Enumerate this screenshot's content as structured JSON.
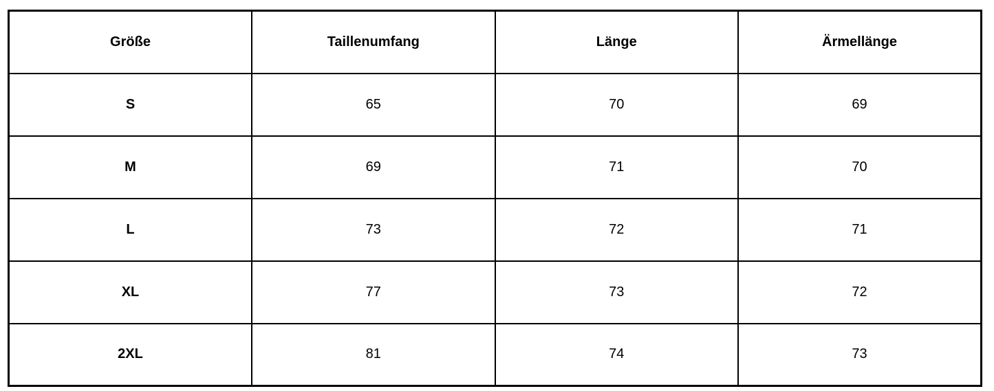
{
  "chart_data": {
    "type": "table",
    "columns": [
      "Größe",
      "Taillenumfang",
      "Länge",
      "Ärmellänge"
    ],
    "rows": [
      [
        "S",
        "65",
        "70",
        "69"
      ],
      [
        "M",
        "69",
        "71",
        "70"
      ],
      [
        "L",
        "73",
        "72",
        "71"
      ],
      [
        "XL",
        "77",
        "73",
        "72"
      ],
      [
        "2XL",
        "81",
        "74",
        "73"
      ]
    ],
    "layout": {
      "grid": "on",
      "border_color": "#000000",
      "text_color": "#000000",
      "background_color": "#ffffff"
    }
  }
}
